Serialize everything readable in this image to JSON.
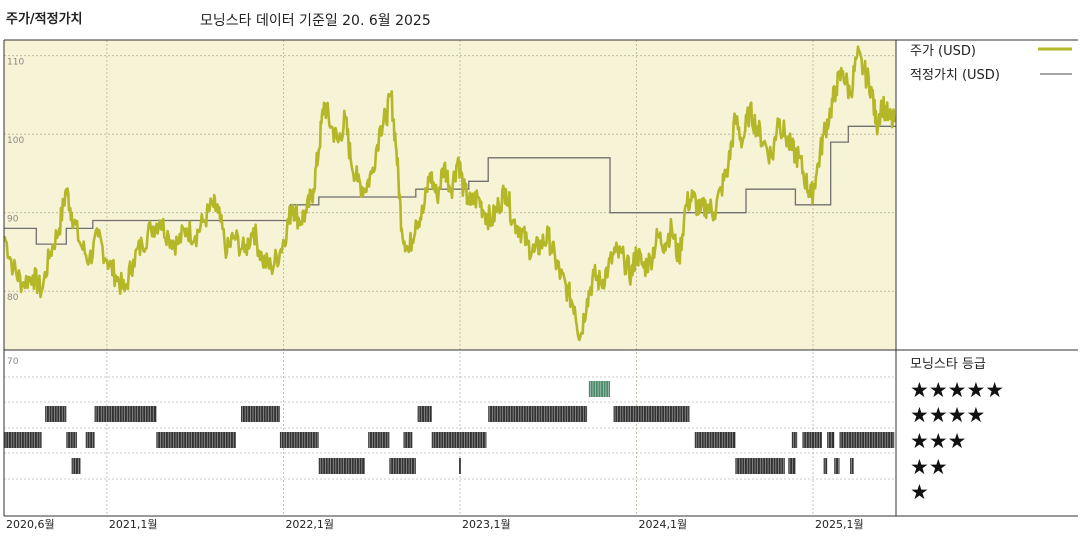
{
  "header": {
    "title": "주가/적정가치",
    "subtitle": "모닝스타 데이터 기준일 20. 6월 2025"
  },
  "colors": {
    "price": "#b4b727",
    "fair_value": "#707070",
    "plot_bg": "#f7f3d6",
    "rating_bar": "#333333",
    "rating_bar_highlight": "#4e8b6c"
  },
  "chart_data": {
    "type": "line",
    "title": "주가/적정가치",
    "x_labels": [
      "2020,6월",
      "2021,1월",
      "2022,1월",
      "2023,1월",
      "2024,1월",
      "2025,1월"
    ],
    "x_label_dates": [
      2020.417,
      2021.0,
      2022.0,
      2023.0,
      2024.0,
      2025.0
    ],
    "x_range": [
      2020.417,
      2025.47
    ],
    "y_ticks": [
      "110",
      "100",
      "90",
      "80",
      "70"
    ],
    "ylim": [
      70,
      110
    ],
    "grid": true,
    "legend_position": "top-right",
    "series": [
      {
        "name": "주가 (USD)",
        "points": [
          [
            2020.42,
            87
          ],
          [
            2020.47,
            83
          ],
          [
            2020.52,
            81
          ],
          [
            2020.58,
            82
          ],
          [
            2020.63,
            80
          ],
          [
            2020.68,
            85
          ],
          [
            2020.73,
            88
          ],
          [
            2020.77,
            93
          ],
          [
            2020.8,
            90
          ],
          [
            2020.85,
            86
          ],
          [
            2020.9,
            84
          ],
          [
            2020.95,
            87
          ],
          [
            2021.0,
            84
          ],
          [
            2021.05,
            82
          ],
          [
            2021.1,
            80
          ],
          [
            2021.15,
            84
          ],
          [
            2021.2,
            86
          ],
          [
            2021.25,
            88
          ],
          [
            2021.3,
            89
          ],
          [
            2021.35,
            87
          ],
          [
            2021.4,
            86
          ],
          [
            2021.45,
            88
          ],
          [
            2021.5,
            87
          ],
          [
            2021.55,
            89
          ],
          [
            2021.6,
            91
          ],
          [
            2021.63,
            90
          ],
          [
            2021.68,
            85
          ],
          [
            2021.72,
            87
          ],
          [
            2021.78,
            85
          ],
          [
            2021.83,
            88
          ],
          [
            2021.88,
            84
          ],
          [
            2021.93,
            83
          ],
          [
            2021.98,
            85
          ],
          [
            2022.02,
            88
          ],
          [
            2022.05,
            91
          ],
          [
            2022.09,
            89
          ],
          [
            2022.13,
            90
          ],
          [
            2022.17,
            93
          ],
          [
            2022.2,
            98
          ],
          [
            2022.23,
            104
          ],
          [
            2022.27,
            101
          ],
          [
            2022.31,
            99
          ],
          [
            2022.35,
            102
          ],
          [
            2022.38,
            97
          ],
          [
            2022.42,
            94
          ],
          [
            2022.46,
            93
          ],
          [
            2022.5,
            95
          ],
          [
            2022.55,
            101
          ],
          [
            2022.58,
            102
          ],
          [
            2022.61,
            105
          ],
          [
            2022.64,
            98
          ],
          [
            2022.67,
            88
          ],
          [
            2022.71,
            85
          ],
          [
            2022.75,
            89
          ],
          [
            2022.79,
            90
          ],
          [
            2022.83,
            95
          ],
          [
            2022.87,
            92
          ],
          [
            2022.91,
            96
          ],
          [
            2022.95,
            93
          ],
          [
            2022.99,
            97
          ],
          [
            2023.02,
            93
          ],
          [
            2023.06,
            91
          ],
          [
            2023.1,
            92
          ],
          [
            2023.14,
            90
          ],
          [
            2023.18,
            89
          ],
          [
            2023.22,
            91
          ],
          [
            2023.26,
            93
          ],
          [
            2023.3,
            89
          ],
          [
            2023.34,
            88
          ],
          [
            2023.38,
            86
          ],
          [
            2023.42,
            85
          ],
          [
            2023.46,
            86
          ],
          [
            2023.5,
            87
          ],
          [
            2023.54,
            84
          ],
          [
            2023.57,
            82
          ],
          [
            2023.61,
            80
          ],
          [
            2023.65,
            78
          ],
          [
            2023.68,
            74
          ],
          [
            2023.72,
            79
          ],
          [
            2023.76,
            82
          ],
          [
            2023.8,
            81
          ],
          [
            2023.84,
            83
          ],
          [
            2023.88,
            85
          ],
          [
            2023.93,
            84
          ],
          [
            2023.97,
            82
          ],
          [
            2024.0,
            85
          ],
          [
            2024.04,
            83
          ],
          [
            2024.08,
            84
          ],
          [
            2024.12,
            87
          ],
          [
            2024.16,
            86
          ],
          [
            2024.2,
            88
          ],
          [
            2024.24,
            84
          ],
          [
            2024.28,
            91
          ],
          [
            2024.32,
            92
          ],
          [
            2024.36,
            90
          ],
          [
            2024.4,
            91
          ],
          [
            2024.44,
            90
          ],
          [
            2024.48,
            93
          ],
          [
            2024.52,
            96
          ],
          [
            2024.56,
            102
          ],
          [
            2024.6,
            99
          ],
          [
            2024.64,
            103
          ],
          [
            2024.68,
            101
          ],
          [
            2024.72,
            99
          ],
          [
            2024.77,
            97
          ],
          [
            2024.8,
            102
          ],
          [
            2024.84,
            100
          ],
          [
            2024.88,
            98
          ],
          [
            2024.92,
            97
          ],
          [
            2024.96,
            94
          ],
          [
            2024.99,
            92
          ],
          [
            2025.02,
            95
          ],
          [
            2025.06,
            100
          ],
          [
            2025.1,
            103
          ],
          [
            2025.13,
            106
          ],
          [
            2025.17,
            108
          ],
          [
            2025.21,
            105
          ],
          [
            2025.25,
            110
          ],
          [
            2025.29,
            108
          ],
          [
            2025.33,
            106
          ],
          [
            2025.36,
            101
          ],
          [
            2025.39,
            104
          ],
          [
            2025.43,
            102
          ],
          [
            2025.46,
            101.5
          ]
        ]
      },
      {
        "name": "적정가치 (USD)",
        "step_points": [
          [
            2020.42,
            88
          ],
          [
            2020.6,
            88
          ],
          [
            2020.6,
            86
          ],
          [
            2020.77,
            86
          ],
          [
            2020.77,
            88
          ],
          [
            2020.92,
            88
          ],
          [
            2020.92,
            89
          ],
          [
            2022.04,
            89
          ],
          [
            2022.04,
            91
          ],
          [
            2022.2,
            91
          ],
          [
            2022.2,
            92
          ],
          [
            2022.75,
            92
          ],
          [
            2022.75,
            93
          ],
          [
            2023.05,
            93
          ],
          [
            2023.05,
            94
          ],
          [
            2023.16,
            94
          ],
          [
            2023.16,
            97
          ],
          [
            2023.85,
            97
          ],
          [
            2023.85,
            90
          ],
          [
            2024.62,
            90
          ],
          [
            2024.62,
            93
          ],
          [
            2024.9,
            93
          ],
          [
            2024.9,
            91
          ],
          [
            2025.1,
            91
          ],
          [
            2025.1,
            99
          ],
          [
            2025.2,
            99
          ],
          [
            2025.2,
            101
          ],
          [
            2025.47,
            101
          ]
        ]
      }
    ],
    "ratings": {
      "title": "모닝스타 등급",
      "levels": [
        "★★★★★",
        "★★★★",
        "★★★",
        "★★",
        "★"
      ],
      "periods": [
        {
          "stars": 5,
          "from": 2023.73,
          "to": 2023.85
        },
        {
          "stars": 4,
          "from": 2020.65,
          "to": 2020.77
        },
        {
          "stars": 4,
          "from": 2020.93,
          "to": 2021.28
        },
        {
          "stars": 4,
          "from": 2021.76,
          "to": 2021.98
        },
        {
          "stars": 4,
          "from": 2022.76,
          "to": 2022.84
        },
        {
          "stars": 4,
          "from": 2023.16,
          "to": 2023.72
        },
        {
          "stars": 4,
          "from": 2023.87,
          "to": 2024.3
        },
        {
          "stars": 3,
          "from": 2020.42,
          "to": 2020.63
        },
        {
          "stars": 3,
          "from": 2020.77,
          "to": 2020.83
        },
        {
          "stars": 3,
          "from": 2020.88,
          "to": 2020.93
        },
        {
          "stars": 3,
          "from": 2021.28,
          "to": 2021.73
        },
        {
          "stars": 3,
          "from": 2021.98,
          "to": 2022.2
        },
        {
          "stars": 3,
          "from": 2022.48,
          "to": 2022.6
        },
        {
          "stars": 3,
          "from": 2022.68,
          "to": 2022.73
        },
        {
          "stars": 3,
          "from": 2022.84,
          "to": 2023.15
        },
        {
          "stars": 3,
          "from": 2024.33,
          "to": 2024.56
        },
        {
          "stars": 3,
          "from": 2024.88,
          "to": 2024.91
        },
        {
          "stars": 3,
          "from": 2024.94,
          "to": 2025.05
        },
        {
          "stars": 3,
          "from": 2025.08,
          "to": 2025.12
        },
        {
          "stars": 3,
          "from": 2025.15,
          "to": 2025.46
        },
        {
          "stars": 2,
          "from": 2020.8,
          "to": 2020.85
        },
        {
          "stars": 2,
          "from": 2022.2,
          "to": 2022.46
        },
        {
          "stars": 2,
          "from": 2022.6,
          "to": 2022.75
        },
        {
          "stars": 2,
          "from": 2022.995,
          "to": 2023.005
        },
        {
          "stars": 2,
          "from": 2024.56,
          "to": 2024.84
        },
        {
          "stars": 2,
          "from": 2024.86,
          "to": 2024.9
        },
        {
          "stars": 2,
          "from": 2025.06,
          "to": 2025.08
        },
        {
          "stars": 2,
          "from": 2025.12,
          "to": 2025.15
        },
        {
          "stars": 2,
          "from": 2025.21,
          "to": 2025.23
        }
      ]
    }
  }
}
